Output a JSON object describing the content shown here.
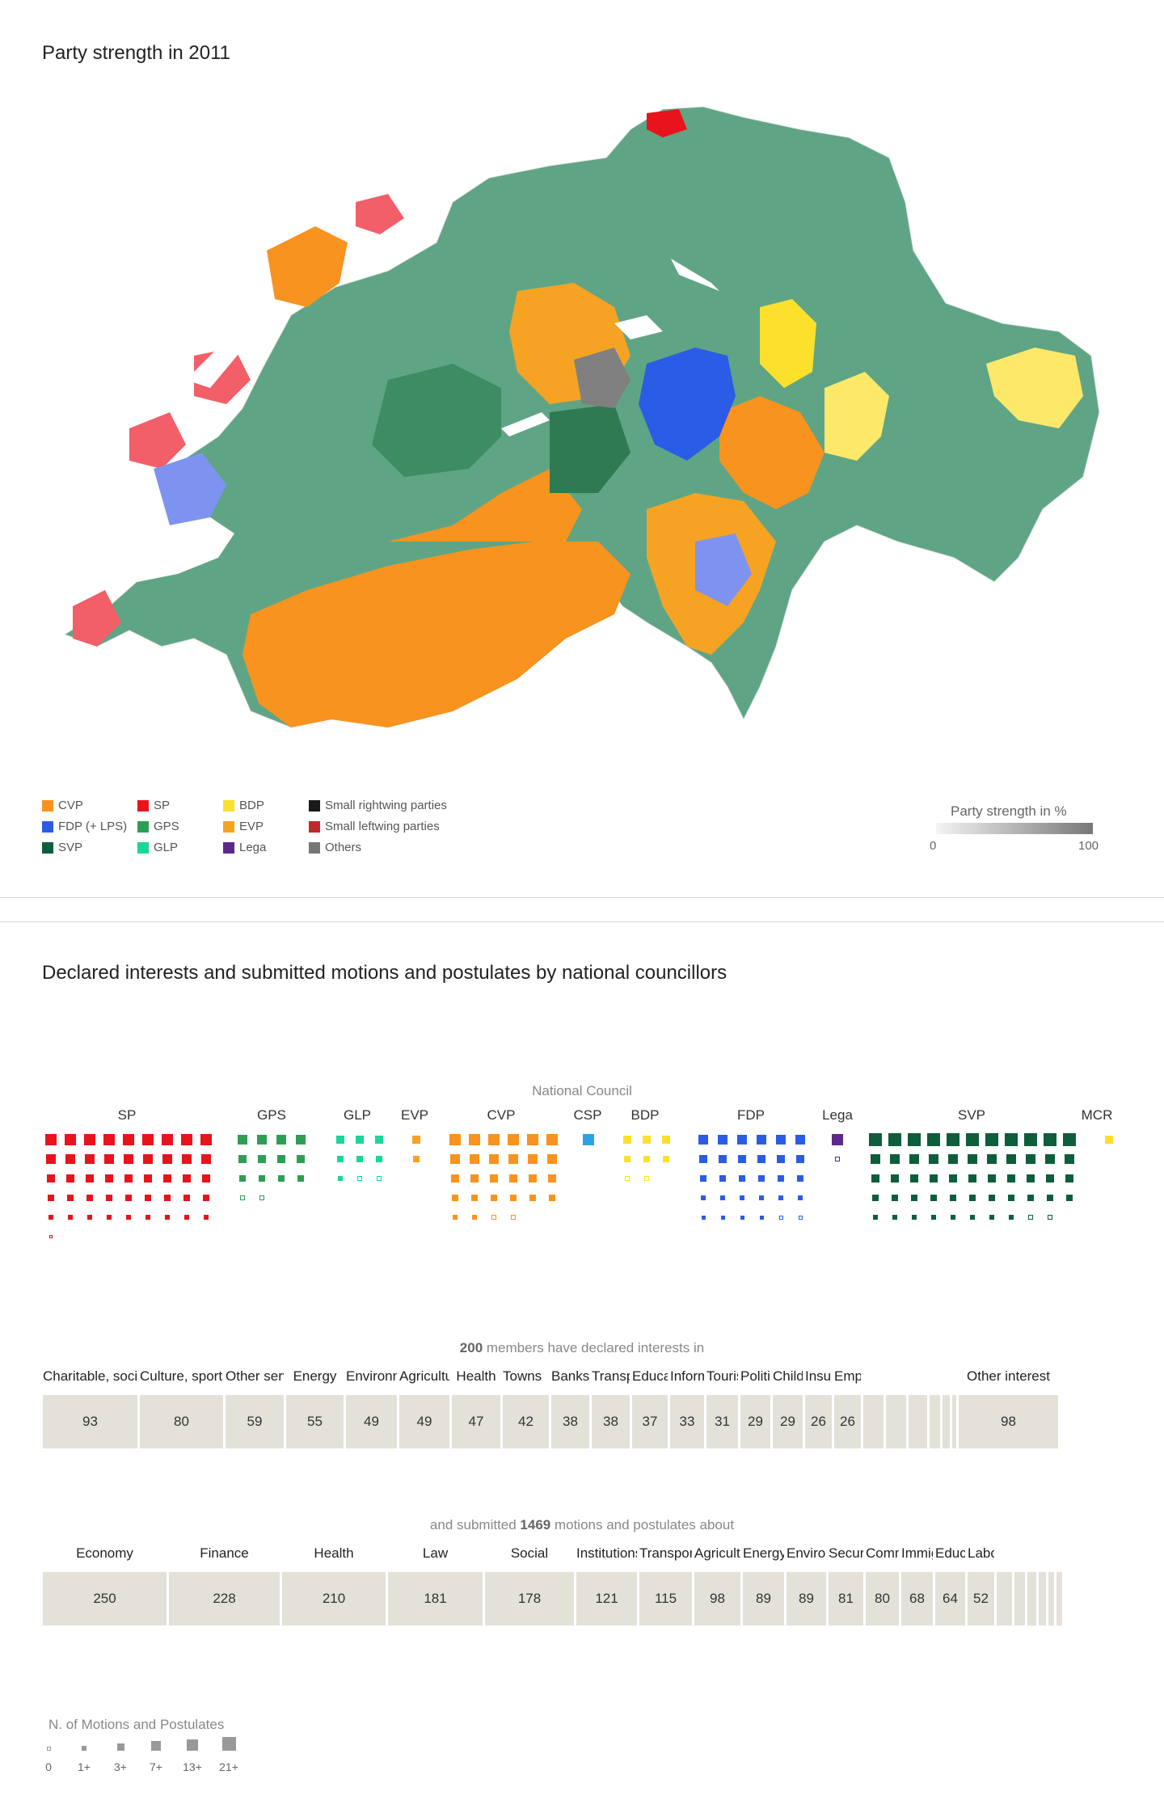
{
  "map_section": {
    "title": "Party strength in 2011",
    "legend": [
      {
        "label": "CVP",
        "color": "#f7931e"
      },
      {
        "label": "FDP (+ LPS)",
        "color": "#2b5ce6"
      },
      {
        "label": "SVP",
        "color": "#0e5e3c"
      },
      {
        "label": "SP",
        "color": "#e8131b"
      },
      {
        "label": "GPS",
        "color": "#2e9e55"
      },
      {
        "label": "GLP",
        "color": "#19d69a"
      },
      {
        "label": "BDP",
        "color": "#fde02b"
      },
      {
        "label": "EVP",
        "color": "#f6a323"
      },
      {
        "label": "Lega",
        "color": "#5b2a8c"
      },
      {
        "label": "Small rightwing parties",
        "color": "#1a1a1a"
      },
      {
        "label": "Small leftwing parties",
        "color": "#c0282d"
      },
      {
        "label": "Others",
        "color": "#777777"
      }
    ],
    "scale": {
      "title": "Party strength in %",
      "min_label": "0",
      "max_label": "100"
    }
  },
  "council_section": {
    "title": "Declared interests and submitted motions and postulates by national councillors",
    "council_label": "National Council",
    "parties": [
      {
        "name": "SP",
        "color": "#e8131b"
      },
      {
        "name": "GPS",
        "color": "#2e9e55"
      },
      {
        "name": "GLP",
        "color": "#19d69a"
      },
      {
        "name": "EVP",
        "color": "#f6a323"
      },
      {
        "name": "CVP",
        "color": "#f7931e"
      },
      {
        "name": "CSP",
        "color": "#29a3e6"
      },
      {
        "name": "BDP",
        "color": "#fde02b"
      },
      {
        "name": "FDP",
        "color": "#2b5ce6"
      },
      {
        "name": "Lega",
        "color": "#5b2a8c"
      },
      {
        "name": "SVP",
        "color": "#0e5e3c"
      },
      {
        "name": "MCR",
        "color": "#fde02b"
      }
    ],
    "interests": {
      "note_prefix": "",
      "note_count": "200",
      "note_suffix": " members have declared interests in",
      "categories": [
        "Charitable, social",
        "Culture, sports",
        "Other services",
        "Energy",
        "Environment",
        "Agriculture",
        "Health",
        "Towns",
        "Banks",
        "Transport",
        "Education",
        "Information",
        "Tourism",
        "Politics",
        "Children",
        "Insurance",
        "Employment",
        "",
        "",
        "",
        "",
        "",
        "",
        "Other interest"
      ],
      "values": [
        "93",
        "80",
        "59",
        "55",
        "49",
        "49",
        "47",
        "42",
        "38",
        "38",
        "37",
        "33",
        "31",
        "29",
        "29",
        "26",
        "26",
        "",
        "",
        "",
        "",
        "",
        "",
        "98"
      ]
    },
    "motions": {
      "note_prefix": "and submitted ",
      "note_count": "1469",
      "note_suffix": " motions and postulates about",
      "categories": [
        "Economy",
        "Finance",
        "Health",
        "Law",
        "Social",
        "Institutions",
        "Transport",
        "Agriculture",
        "Energy",
        "Environment",
        "Security",
        "Communication",
        "Immigration",
        "Education",
        "Labour",
        "",
        "",
        "",
        "",
        "",
        ""
      ],
      "values": [
        "250",
        "228",
        "210",
        "181",
        "178",
        "121",
        "115",
        "98",
        "89",
        "89",
        "81",
        "80",
        "68",
        "64",
        "52",
        "",
        "",
        "",
        "",
        "",
        ""
      ]
    },
    "size_legend": {
      "title": "N. of Motions and Postulates",
      "labels": [
        "0",
        "1+",
        "3+",
        "7+",
        "13+",
        "21+"
      ]
    }
  }
}
